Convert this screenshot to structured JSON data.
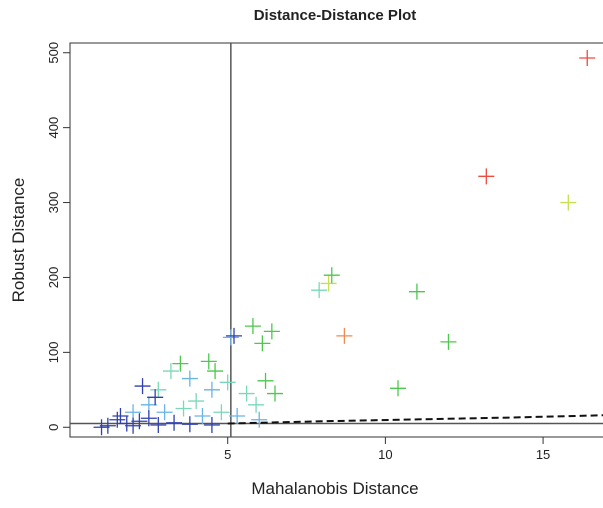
{
  "chart_data": {
    "type": "scatter",
    "title": "Distance-Distance Plot",
    "x_label": "Mahalanobis Distance",
    "y_label": "Robust Distance",
    "xlim": [
      0,
      16.9
    ],
    "ylim": [
      -13,
      513
    ],
    "xticks": [
      5,
      10,
      15
    ],
    "yticks": [
      0,
      100,
      200,
      300,
      400,
      500
    ],
    "vline": 5.1,
    "hline": 5,
    "dashed_line": {
      "x": [
        5,
        8,
        11,
        14,
        16.9
      ],
      "y": [
        5,
        8,
        10.5,
        13,
        16
      ]
    },
    "series": [
      {
        "color": "#f04a3c",
        "x": [
          16.4,
          13.2
        ],
        "y": [
          493,
          335
        ]
      },
      {
        "color": "#f08a50",
        "x": [
          8.7
        ],
        "y": [
          122
        ]
      },
      {
        "color": "#c8e050",
        "x": [
          15.8,
          8.2
        ],
        "y": [
          300,
          192
        ]
      },
      {
        "color": "#4cc84c",
        "x": [
          8.3,
          11,
          12,
          10.4,
          6.4,
          6.1,
          5.8,
          6.2,
          6.5,
          4.6,
          3.5,
          4.4
        ],
        "y": [
          203,
          181,
          114,
          52,
          128,
          112,
          135,
          62,
          45,
          75,
          85,
          88
        ]
      },
      {
        "color": "#7ad8b8",
        "x": [
          7.9,
          5.6,
          5.9,
          3.2,
          2.8,
          4.0,
          3.6,
          5.0,
          4.8
        ],
        "y": [
          183,
          45,
          30,
          75,
          50,
          35,
          25,
          60,
          20
        ]
      },
      {
        "color": "#6ab4e4",
        "x": [
          5.1,
          4.5,
          3.8,
          2.5,
          3.0,
          4.2,
          5.3,
          6.0,
          2.0
        ],
        "y": [
          120,
          50,
          65,
          30,
          20,
          15,
          15,
          10,
          20
        ]
      },
      {
        "color": "#3040b0",
        "x": [
          5.2,
          2.3,
          2.7,
          1.5,
          1.8,
          2.2,
          2.8,
          3.3,
          1.2,
          1.0,
          2.5,
          3.8,
          4.5,
          1.6,
          2.0
        ],
        "y": [
          122,
          55,
          40,
          10,
          5,
          8,
          3,
          6,
          2,
          0,
          12,
          4,
          3,
          15,
          2
        ]
      }
    ]
  }
}
